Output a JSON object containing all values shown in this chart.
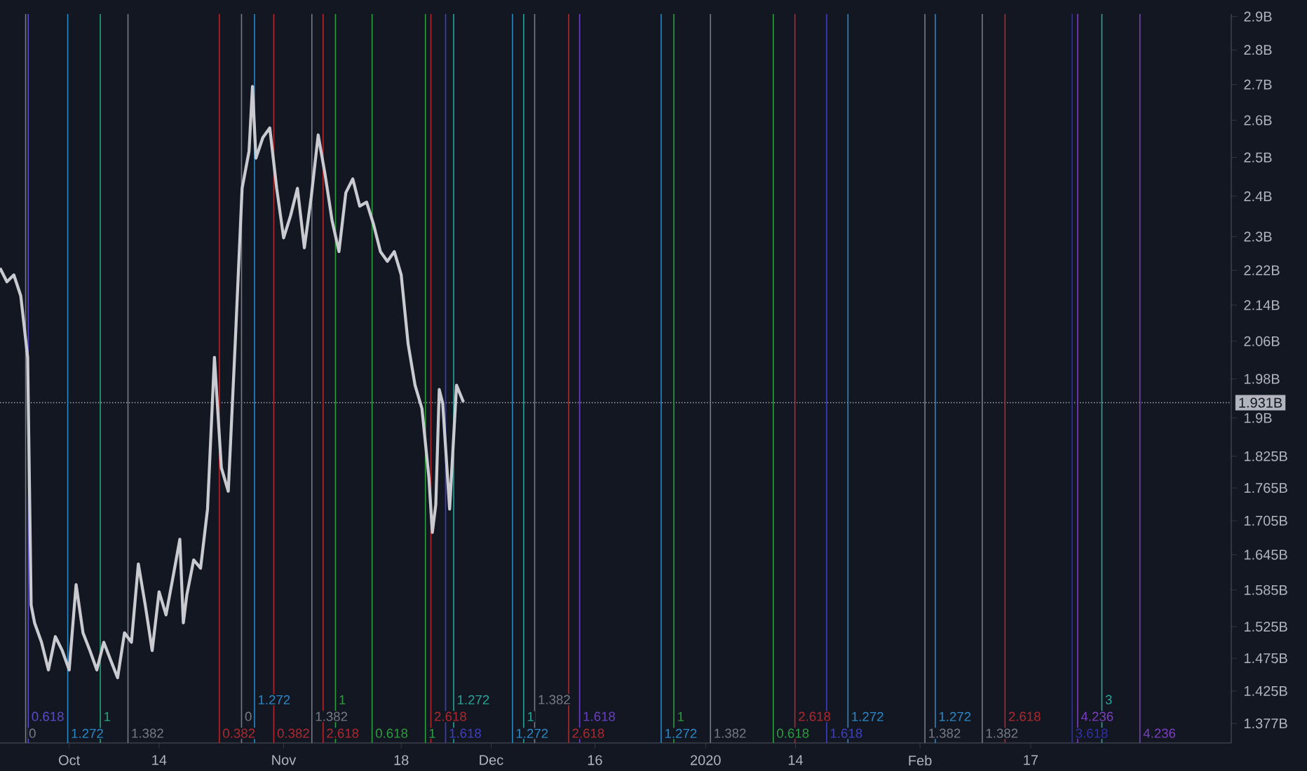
{
  "chart_data": {
    "type": "line",
    "log": true,
    "color": "#c9cbd1",
    "x": [
      "2019-09-21",
      "2019-09-22",
      "2019-09-23",
      "2019-09-24",
      "2019-09-25",
      "2019-09-25T12:00",
      "2019-09-26",
      "2019-09-27",
      "2019-09-28",
      "2019-09-29",
      "2019-09-30",
      "2019-10-01",
      "2019-10-02",
      "2019-10-03",
      "2019-10-04",
      "2019-10-05",
      "2019-10-06",
      "2019-10-07",
      "2019-10-08",
      "2019-10-09",
      "2019-10-10",
      "2019-10-11",
      "2019-10-12",
      "2019-10-13",
      "2019-10-14",
      "2019-10-15",
      "2019-10-16",
      "2019-10-17",
      "2019-10-17T12:00",
      "2019-10-18",
      "2019-10-19",
      "2019-10-20",
      "2019-10-21",
      "2019-10-22",
      "2019-10-23",
      "2019-10-24",
      "2019-10-25",
      "2019-10-26",
      "2019-10-27",
      "2019-10-27T12:00",
      "2019-10-28",
      "2019-10-29",
      "2019-10-30",
      "2019-10-31",
      "2019-11-01",
      "2019-11-02",
      "2019-11-03",
      "2019-11-04",
      "2019-11-05",
      "2019-11-06",
      "2019-11-07",
      "2019-11-08",
      "2019-11-09",
      "2019-11-10",
      "2019-11-11",
      "2019-11-12",
      "2019-11-13",
      "2019-11-14",
      "2019-11-15",
      "2019-11-16",
      "2019-11-17",
      "2019-11-18",
      "2019-11-19",
      "2019-11-20",
      "2019-11-21",
      "2019-11-22",
      "2019-11-22T12:00",
      "2019-11-23",
      "2019-11-23T12:00",
      "2019-11-24",
      "2019-11-25",
      "2019-11-26",
      "2019-11-27"
    ],
    "values": [
      2.225,
      2.193,
      2.209,
      2.161,
      2.025,
      1.56,
      1.531,
      1.5,
      1.457,
      1.509,
      1.487,
      1.457,
      1.594,
      1.515,
      1.487,
      1.457,
      1.5,
      1.472,
      1.445,
      1.515,
      1.5,
      1.629,
      1.56,
      1.487,
      1.582,
      1.544,
      1.606,
      1.672,
      1.531,
      1.576,
      1.636,
      1.622,
      1.726,
      2.025,
      1.803,
      1.759,
      2.054,
      2.42,
      2.516,
      2.694,
      2.498,
      2.553,
      2.579,
      2.42,
      2.297,
      2.351,
      2.42,
      2.273,
      2.399,
      2.56,
      2.455,
      2.34,
      2.264,
      2.409,
      2.444,
      2.375,
      2.385,
      2.33,
      2.264,
      2.241,
      2.264,
      2.209,
      2.054,
      1.967,
      1.919,
      1.785,
      1.684,
      1.734,
      1.958,
      1.93,
      1.726,
      1.967,
      1.932
    ],
    "xlim": [
      "2019-09-21",
      "2020-03-17"
    ],
    "xticks": [
      {
        "value": "2019-10-01",
        "label": "Oct"
      },
      {
        "value": "2019-10-14",
        "label": "14"
      },
      {
        "value": "2019-11-01",
        "label": "Nov"
      },
      {
        "value": "2019-11-18",
        "label": "18"
      },
      {
        "value": "2019-12-01",
        "label": "Dec"
      },
      {
        "value": "2019-12-16",
        "label": "16"
      },
      {
        "value": "2020-01-01",
        "label": "2020"
      },
      {
        "value": "2020-01-14",
        "label": "14"
      },
      {
        "value": "2020-02-01",
        "label": "Feb"
      },
      {
        "value": "2020-02-17",
        "label": "17"
      }
    ],
    "ylim": [
      1.349,
      2.908
    ],
    "yticks": [
      {
        "value": 1.377,
        "label": "1.377B"
      },
      {
        "value": 1.425,
        "label": "1.425B"
      },
      {
        "value": 1.475,
        "label": "1.475B"
      },
      {
        "value": 1.525,
        "label": "1.525B"
      },
      {
        "value": 1.585,
        "label": "1.585B"
      },
      {
        "value": 1.645,
        "label": "1.645B"
      },
      {
        "value": 1.705,
        "label": "1.705B"
      },
      {
        "value": 1.765,
        "label": "1.765B"
      },
      {
        "value": 1.825,
        "label": "1.825B"
      },
      {
        "value": 1.9,
        "label": "1.9B"
      },
      {
        "value": 1.98,
        "label": "1.98B"
      },
      {
        "value": 2.06,
        "label": "2.06B"
      },
      {
        "value": 2.14,
        "label": "2.14B"
      },
      {
        "value": 2.22,
        "label": "2.22B"
      },
      {
        "value": 2.3,
        "label": "2.3B"
      },
      {
        "value": 2.4,
        "label": "2.4B"
      },
      {
        "value": 2.5,
        "label": "2.5B"
      },
      {
        "value": 2.6,
        "label": "2.6B"
      },
      {
        "value": 2.7,
        "label": "2.7B"
      },
      {
        "value": 2.8,
        "label": "2.8B"
      },
      {
        "value": 2.9,
        "label": "2.9B"
      }
    ],
    "ref_lines": [
      {
        "axis": "y",
        "value": 1.931,
        "label": "1.931B",
        "color": "#b2b5be",
        "line_style": "dotted"
      },
      {
        "axis": "x",
        "value": "2019-09-24T17:00",
        "label": "0",
        "color": "#787b86"
      },
      {
        "axis": "x",
        "value": "2019-09-25T02:00",
        "label": "0.618",
        "color": "#5c4bc8"
      },
      {
        "axis": "x",
        "value": "2019-09-30T19:00",
        "label": "1.272",
        "color": "#2a88c6"
      },
      {
        "axis": "x",
        "value": "2019-10-05T12:00",
        "label": "1",
        "color": "#26a67a"
      },
      {
        "axis": "x",
        "value": "2019-10-09T12:00",
        "label": "1.382",
        "color": "#787b86"
      },
      {
        "axis": "x",
        "value": "2019-10-22T17:00",
        "label": "0.382",
        "color": "#b2282e"
      },
      {
        "axis": "x",
        "value": "2019-10-25T22:00",
        "label": "0",
        "color": "#787b86"
      },
      {
        "axis": "x",
        "value": "2019-10-27T19:00",
        "label": "1.272",
        "color": "#2a88c6"
      },
      {
        "axis": "x",
        "value": "2019-10-30T14:00",
        "label": "0.382",
        "color": "#b2282e"
      },
      {
        "axis": "x",
        "value": "2019-11-05T02:00",
        "label": "1.382",
        "color": "#787b86"
      },
      {
        "axis": "x",
        "value": "2019-11-06T17:00",
        "label": "2.618",
        "color": "#b2282e"
      },
      {
        "axis": "x",
        "value": "2019-11-08T12:00",
        "label": "1",
        "color": "#2e9e3e"
      },
      {
        "axis": "x",
        "value": "2019-11-13T19:00",
        "label": "0.618",
        "color": "#2e9e3e"
      },
      {
        "axis": "x",
        "value": "2019-11-21T12:00",
        "label": "1",
        "color": "#2e9e3e"
      },
      {
        "axis": "x",
        "value": "2019-11-22T07:00",
        "label": "2.618",
        "color": "#b2282e"
      },
      {
        "axis": "x",
        "value": "2019-11-24T10:00",
        "label": "1.618",
        "color": "#3f3fc0"
      },
      {
        "axis": "x",
        "value": "2019-11-25T14:00",
        "label": "1.272",
        "color": "#26a69a"
      },
      {
        "axis": "x",
        "value": "2019-12-04T02:00",
        "label": "1.272",
        "color": "#2a88c6"
      },
      {
        "axis": "x",
        "value": "2019-12-05T17:00",
        "label": "1",
        "color": "#26a69a"
      },
      {
        "axis": "x",
        "value": "2019-12-07T07:00",
        "label": "1.382",
        "color": "#787b86"
      },
      {
        "axis": "x",
        "value": "2019-12-12T05:00",
        "label": "2.618",
        "color": "#b2282e"
      },
      {
        "axis": "x",
        "value": "2019-12-13T19:00",
        "label": "1.618",
        "color": "#6a3fc0"
      },
      {
        "axis": "x",
        "value": "2019-12-25T14:00",
        "label": "1.272",
        "color": "#2a88c6"
      },
      {
        "axis": "x",
        "value": "2019-12-27T10:00",
        "label": "1",
        "color": "#2e9e3e"
      },
      {
        "axis": "x",
        "value": "2020-01-01T17:00",
        "label": "1.382",
        "color": "#787b86"
      },
      {
        "axis": "x",
        "value": "2020-01-10T19:00",
        "label": "0.618",
        "color": "#2e9e3e"
      },
      {
        "axis": "x",
        "value": "2020-01-13T22:00",
        "label": "2.618",
        "color": "#b2282e"
      },
      {
        "axis": "x",
        "value": "2020-01-18T12:00",
        "label": "1.618",
        "color": "#3f3fc0"
      },
      {
        "axis": "x",
        "value": "2020-01-21T14:00",
        "label": "1.272",
        "color": "#2a88c6"
      },
      {
        "axis": "x",
        "value": "2020-02-01T17:00",
        "label": "1.382",
        "color": "#787b86"
      },
      {
        "axis": "x",
        "value": "2020-02-03T05:00",
        "label": "1.272",
        "color": "#2a88c6"
      },
      {
        "axis": "x",
        "value": "2020-02-10T00:00",
        "label": "1.382",
        "color": "#787b86"
      },
      {
        "axis": "x",
        "value": "2020-02-13T07:00",
        "label": "2.618",
        "color": "#b2282e"
      },
      {
        "axis": "x",
        "value": "2020-02-23T00:00",
        "label": "3.618",
        "color": "#3030a8"
      },
      {
        "axis": "x",
        "value": "2020-02-23T19:00",
        "label": "4.236",
        "color": "#7b3fc0"
      },
      {
        "axis": "x",
        "value": "2020-02-27T07:00",
        "label": "3",
        "color": "#26a69a"
      },
      {
        "axis": "x",
        "value": "2020-03-03T19:00",
        "label": "4.236",
        "color": "#7b3fc0"
      }
    ]
  }
}
